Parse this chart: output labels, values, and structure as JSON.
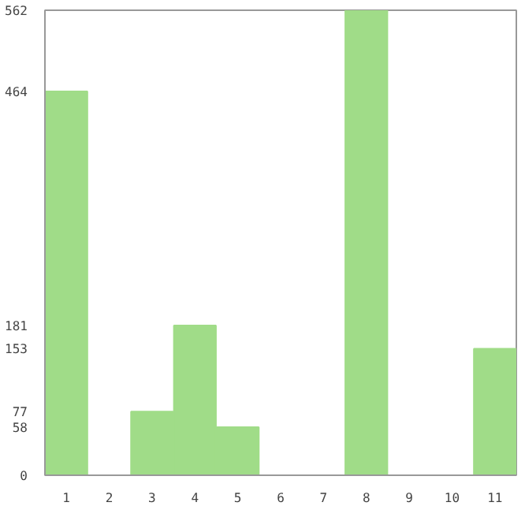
{
  "chart_data": {
    "type": "bar",
    "categories": [
      "1",
      "2",
      "3",
      "4",
      "5",
      "6",
      "7",
      "8",
      "9",
      "10",
      "11"
    ],
    "values": [
      464,
      0,
      77,
      181,
      58,
      0,
      0,
      562,
      0,
      0,
      153
    ],
    "color": "#a0dc88",
    "ylim": [
      0,
      562
    ],
    "yticks": [
      0,
      58,
      77,
      153,
      181,
      464,
      562
    ],
    "grid": false
  }
}
